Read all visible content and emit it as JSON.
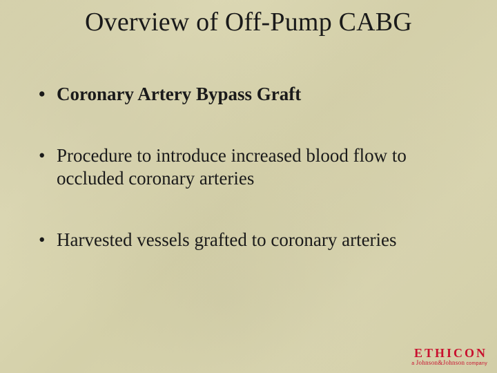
{
  "slide": {
    "title": "Overview of Off-Pump CABG",
    "bullets": [
      {
        "text": "Coronary Artery Bypass Graft",
        "bold": true
      },
      {
        "text": "Procedure to introduce increased blood flow to occluded coronary arteries",
        "bold": false
      },
      {
        "text": "Harvested vessels grafted to coronary arteries",
        "bold": false
      }
    ],
    "logo": {
      "main": "ETHICON",
      "sub_prefix": "a ",
      "sub_script": "Johnson&Johnson",
      "sub_suffix": " company"
    },
    "colors": {
      "background": "#d8d4b0",
      "text": "#1a1a1a",
      "logo": "#c8102e"
    },
    "fonts": {
      "title_size_pt": 38,
      "body_size_pt": 27
    }
  }
}
